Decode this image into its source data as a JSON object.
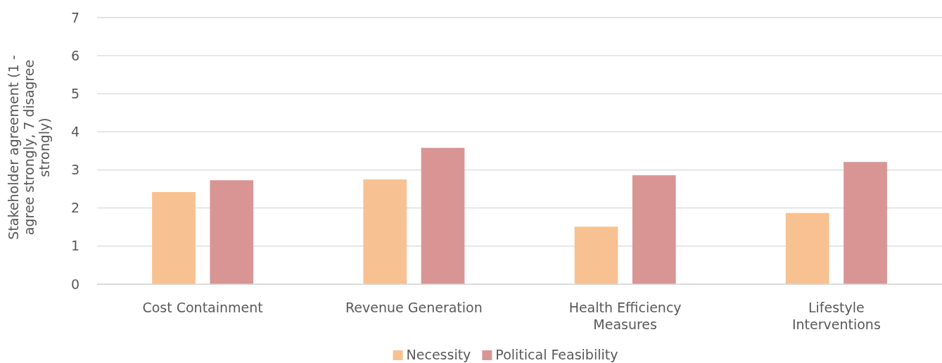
{
  "chart_data": {
    "type": "bar",
    "ylabel": "Stakeholder agreement (1 - agree strongly, 7 disagree strongly)",
    "categories": [
      "Cost Containment",
      "Revenue Generation",
      "Health Efficiency Measures",
      "Lifestyle Interventions"
    ],
    "series": [
      {
        "name": "Necessity",
        "color": "#f8c191",
        "values": [
          2.42,
          2.75,
          1.51,
          1.87
        ]
      },
      {
        "name": "Political Feasibility",
        "color": "#d99594",
        "values": [
          2.73,
          3.58,
          2.86,
          3.21
        ]
      }
    ],
    "ylim": [
      0,
      7
    ],
    "yticks": [
      0,
      1,
      2,
      3,
      4,
      5,
      6,
      7
    ],
    "grid": "y",
    "legend": "bottom"
  }
}
